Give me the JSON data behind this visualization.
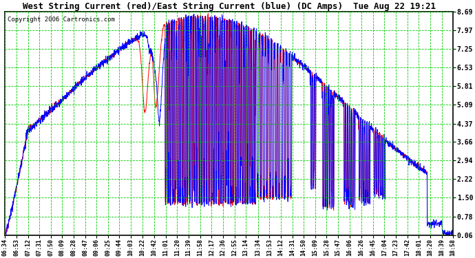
{
  "title": "West String Current (red)/East String Current (blue) (DC Amps)  Tue Aug 22 19:21",
  "copyright": "Copyright 2006 Cartronics.com",
  "bg_color": "#ffffff",
  "plot_bg_color": "#ffffff",
  "grid_color": "#00cc00",
  "line1_color": "#ff0000",
  "line2_color": "#0000ff",
  "yticks": [
    0.06,
    0.78,
    1.5,
    2.22,
    2.94,
    3.66,
    4.37,
    5.09,
    5.81,
    6.53,
    7.25,
    7.97,
    8.69
  ],
  "ylim": [
    0.06,
    8.69
  ],
  "xtick_labels": [
    "06:34",
    "06:53",
    "07:12",
    "07:31",
    "07:50",
    "08:09",
    "08:28",
    "08:47",
    "09:06",
    "09:25",
    "09:44",
    "10:03",
    "10:22",
    "10:42",
    "11:01",
    "11:20",
    "11:39",
    "11:58",
    "12:17",
    "12:36",
    "12:55",
    "13:14",
    "13:34",
    "13:53",
    "14:12",
    "14:31",
    "14:50",
    "15:09",
    "15:28",
    "15:47",
    "16:06",
    "16:26",
    "16:45",
    "17:04",
    "17:23",
    "17:42",
    "18:01",
    "18:20",
    "18:39",
    "18:58"
  ],
  "figsize": [
    6.9,
    3.75
  ],
  "dpi": 100
}
